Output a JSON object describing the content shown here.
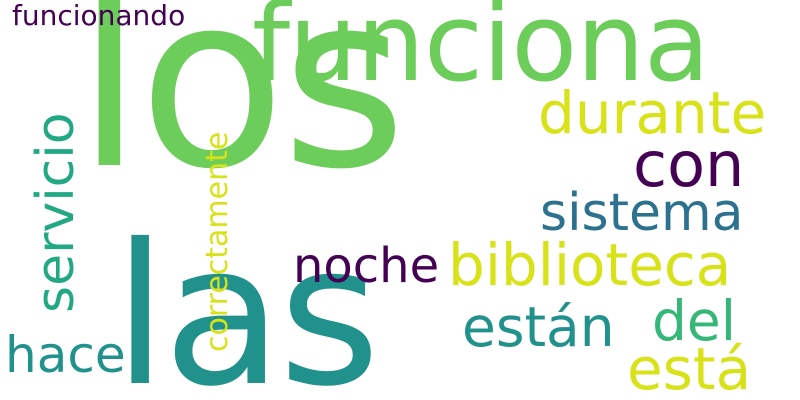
{
  "words": {
    "los": {
      "text": "los",
      "color": "#6ccd5a"
    },
    "las": {
      "text": "las",
      "color": "#21918c"
    },
    "funciona": {
      "text": "funciona",
      "color": "#6ccd5a"
    },
    "funcionando": {
      "text": "funcionando",
      "color": "#440154"
    },
    "durante": {
      "text": "durante",
      "color": "#d8e219"
    },
    "con": {
      "text": "con",
      "color": "#440154"
    },
    "sistema": {
      "text": "sistema",
      "color": "#2c728e"
    },
    "servicio": {
      "text": "servicio",
      "color": "#22a884"
    },
    "correctamente": {
      "text": "correctamente",
      "color": "#d8e219"
    },
    "noche": {
      "text": "noche",
      "color": "#440154"
    },
    "biblioteca": {
      "text": "biblioteca",
      "color": "#d8e219"
    },
    "estan": {
      "text": "están",
      "color": "#21918c"
    },
    "del": {
      "text": "del",
      "color": "#35b779"
    },
    "esta": {
      "text": "está",
      "color": "#d8e219"
    },
    "hace": {
      "text": "hace",
      "color": "#21918c"
    }
  }
}
